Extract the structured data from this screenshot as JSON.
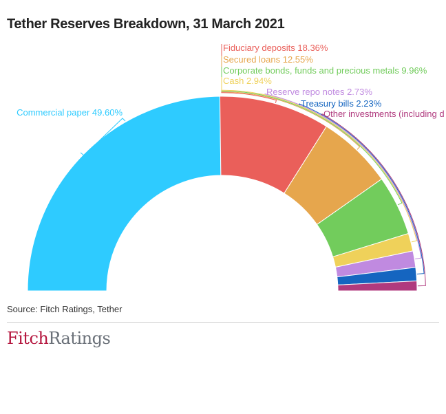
{
  "chart_data": {
    "type": "pie",
    "subtype": "semi-donut",
    "title": "Tether Reserves Breakdown, 31 March 2021",
    "source": "Source: Fitch Ratings, Tether",
    "slices": [
      {
        "label": "Commercial paper 49.60%",
        "value": 49.6,
        "color": "#2ecbff"
      },
      {
        "label": "Fiduciary deposits 18.36%",
        "value": 18.36,
        "color": "#ea5f5a"
      },
      {
        "label": "Secured loans 12.55%",
        "value": 12.55,
        "color": "#e6a64d"
      },
      {
        "label": "Corporate bonds, funds and precious metals 9.96%",
        "value": 9.96,
        "color": "#72cc5c"
      },
      {
        "label": "Cash 2.94%",
        "value": 2.94,
        "color": "#efd15a"
      },
      {
        "label": "Reserve repo notes 2.73%",
        "value": 2.73,
        "color": "#c08ae0"
      },
      {
        "label": "Treasury bills 2.23%",
        "value": 2.23,
        "color": "#1565c0"
      },
      {
        "label": "Other investments (including d",
        "value": 1.63,
        "color": "#b03a7e"
      }
    ]
  },
  "logo": {
    "part1": "Fitch",
    "part2": "Ratings"
  }
}
